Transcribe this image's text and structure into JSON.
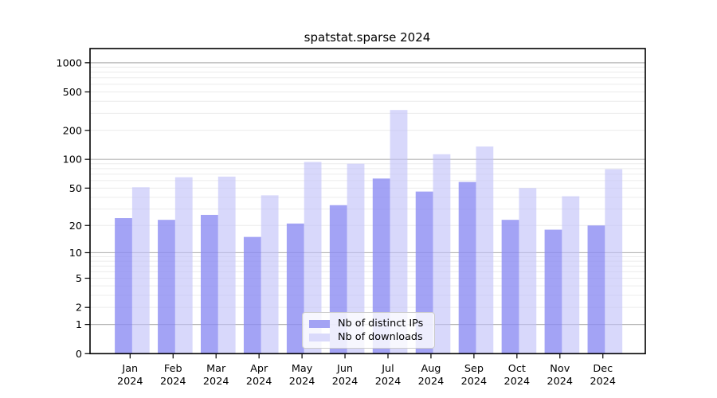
{
  "chart_data": {
    "type": "bar",
    "title": "spatstat.sparse 2024",
    "categories": [
      "Jan 2024",
      "Feb 2024",
      "Mar 2024",
      "Apr 2024",
      "May 2024",
      "Jun 2024",
      "Jul 2024",
      "Aug 2024",
      "Sep 2024",
      "Oct 2024",
      "Nov 2024",
      "Dec 2024"
    ],
    "series": [
      {
        "name": "Nb of distinct IPs",
        "color": "rgba(140,140,242,0.8)",
        "color_solid": "#a3a3f4",
        "values": [
          24,
          23,
          26,
          15,
          21,
          33,
          63,
          46,
          58,
          23,
          18,
          20
        ]
      },
      {
        "name": "Nb of downloads",
        "color": "rgba(192,192,248,0.62)",
        "color_solid": "#dadafb",
        "values": [
          51,
          65,
          66,
          42,
          94,
          90,
          325,
          113,
          136,
          50,
          41,
          79
        ]
      }
    ],
    "y_axis": {
      "scale": "log10(value+1)",
      "tick_labels": [
        0,
        1,
        2,
        5,
        10,
        20,
        50,
        100,
        200,
        500,
        1000
      ],
      "major_gridlines": [
        1,
        10,
        100,
        1000
      ],
      "minor_gridlines": [
        2,
        3,
        4,
        5,
        6,
        7,
        8,
        9,
        20,
        30,
        40,
        50,
        60,
        70,
        80,
        90,
        200,
        300,
        400,
        500,
        600,
        700,
        800,
        900
      ]
    },
    "legend_position": "lower center",
    "grid": true,
    "colors": {
      "background": "#ffffff",
      "frame": "#000000",
      "major_grid": "#b5b5b5",
      "minor_grid": "#ececec",
      "text": "#000000",
      "legend_border": "#cccccc"
    }
  }
}
